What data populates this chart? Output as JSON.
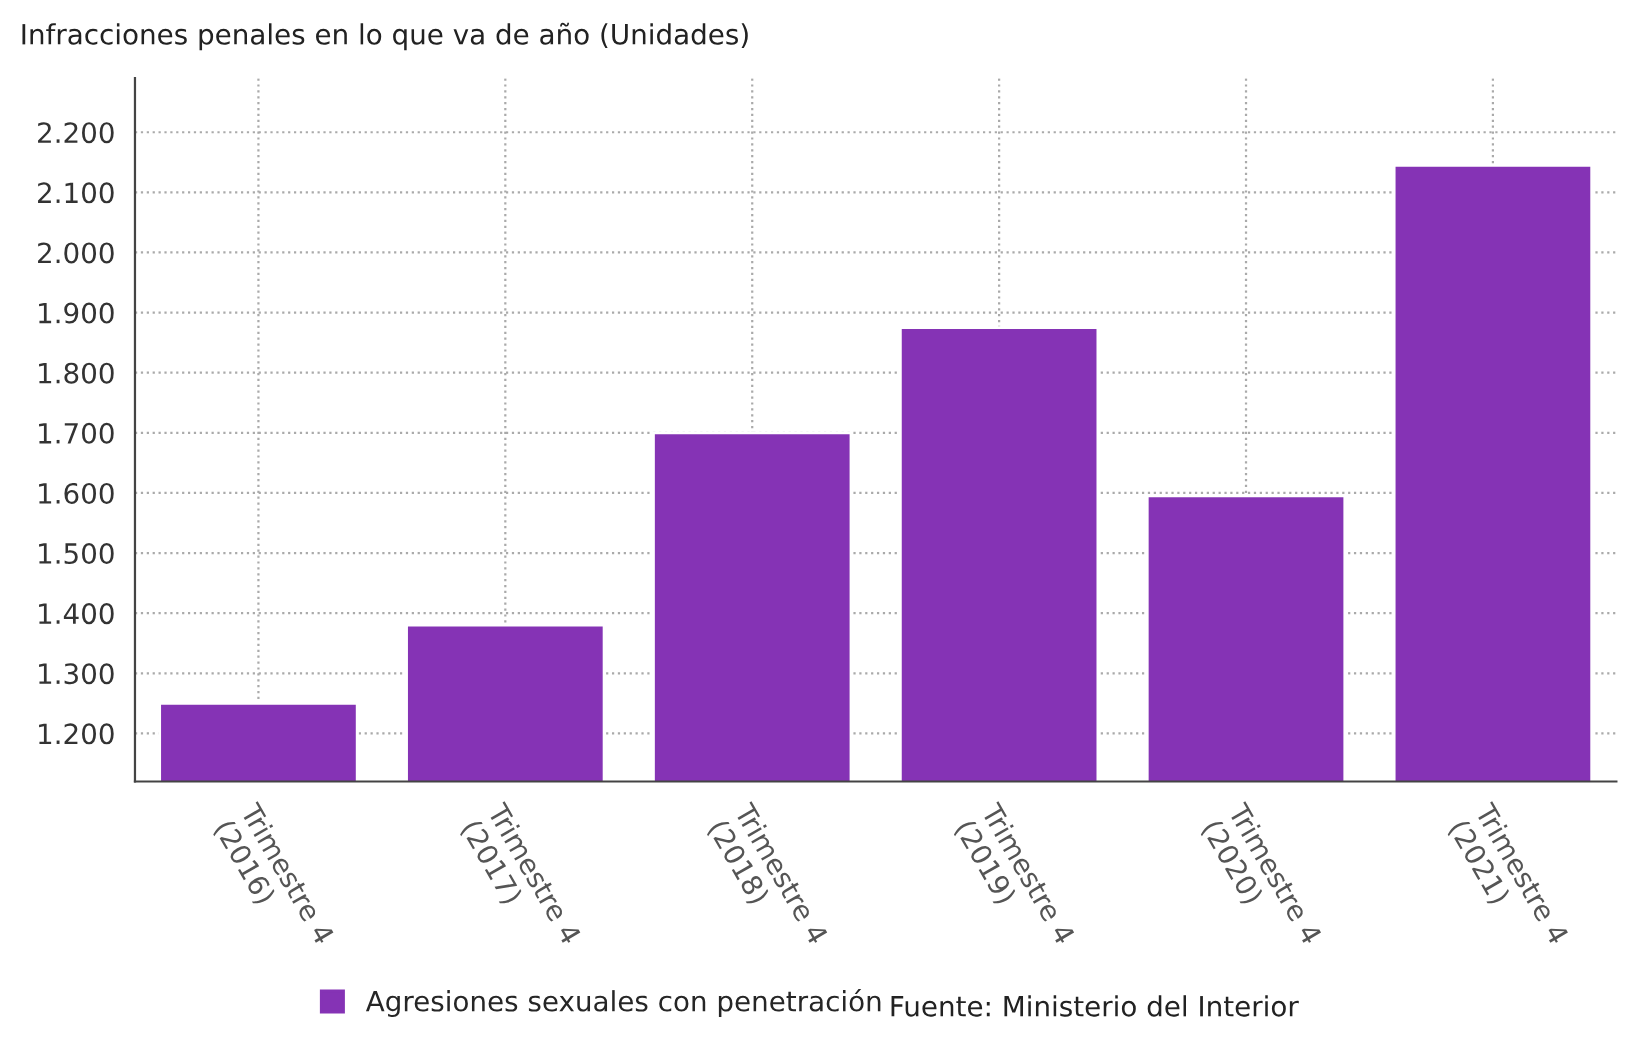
{
  "chart_data": {
    "type": "bar",
    "title": "Infracciones penales en lo que va de año (Unidades)",
    "categories": [
      "Trimestre 4\n(2016)",
      "Trimestre 4\n(2017)",
      "Trimestre 4\n(2018)",
      "Trimestre 4\n(2019)",
      "Trimestre 4\n(2020)",
      "Trimestre 4\n(2021)"
    ],
    "series": [
      {
        "name": "Agresiones sexuales con penetración",
        "color": "#8533b5",
        "values": [
          1250,
          1380,
          1700,
          1875,
          1595,
          2145
        ]
      }
    ],
    "ylim": [
      1120,
      2290
    ],
    "yticks": [
      {
        "value": 1200,
        "label": "1.200"
      },
      {
        "value": 1300,
        "label": "1.300"
      },
      {
        "value": 1400,
        "label": "1.400"
      },
      {
        "value": 1500,
        "label": "1.500"
      },
      {
        "value": 1600,
        "label": "1.600"
      },
      {
        "value": 1700,
        "label": "1.700"
      },
      {
        "value": 1800,
        "label": "1.800"
      },
      {
        "value": 1900,
        "label": "1.900"
      },
      {
        "value": 2000,
        "label": "2.000"
      },
      {
        "value": 2100,
        "label": "2.100"
      },
      {
        "value": 2200,
        "label": "2.200"
      }
    ],
    "grid": true,
    "legend": "bottom",
    "annotations": [
      "Fuente: Ministerio del Interior"
    ]
  }
}
